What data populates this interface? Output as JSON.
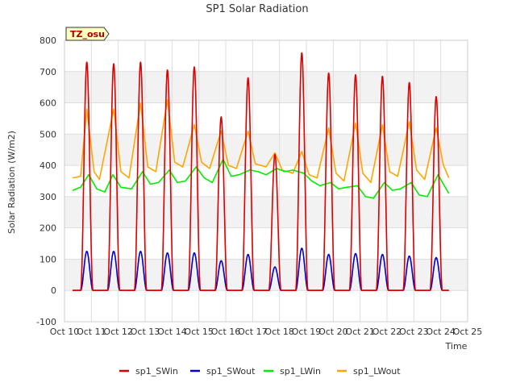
{
  "chart_data": {
    "type": "line",
    "title": "SP1 Solar Radiation",
    "xlabel": "Time",
    "ylabel": "Solar Radiation (W/m2)",
    "tag": "TZ_osu",
    "xlim": [
      10,
      25
    ],
    "ylim": [
      -100,
      800
    ],
    "x_ticks": [
      10,
      11,
      12,
      13,
      14,
      15,
      16,
      17,
      18,
      19,
      20,
      21,
      22,
      23,
      24,
      25
    ],
    "x_tick_labels": [
      "Oct 10",
      "Oct 11",
      "Oct 12",
      "Oct 13",
      "Oct 14",
      "Oct 15",
      "Oct 16",
      "Oct 17",
      "Oct 18",
      "Oct 19",
      "Oct 20",
      "Oct 21",
      "Oct 22",
      "Oct 23",
      "Oct 24",
      "Oct 25"
    ],
    "y_ticks": [
      -100,
      0,
      100,
      200,
      300,
      400,
      500,
      600,
      700,
      800
    ],
    "grid": true,
    "legend_position": "bottom",
    "series": [
      {
        "name": "sp1_SWin",
        "color": "#dd0000",
        "peaks": [
          {
            "day": 10.83,
            "value": 730
          },
          {
            "day": 11.83,
            "value": 725
          },
          {
            "day": 12.83,
            "value": 730
          },
          {
            "day": 13.83,
            "value": 705
          },
          {
            "day": 14.83,
            "value": 715
          },
          {
            "day": 15.83,
            "value": 555
          },
          {
            "day": 16.83,
            "value": 680
          },
          {
            "day": 17.83,
            "value": 435
          },
          {
            "day": 18.83,
            "value": 760
          },
          {
            "day": 19.83,
            "value": 695
          },
          {
            "day": 20.83,
            "value": 690
          },
          {
            "day": 21.83,
            "value": 685
          },
          {
            "day": 22.83,
            "value": 665
          },
          {
            "day": 23.83,
            "value": 620
          }
        ]
      },
      {
        "name": "sp1_SWout",
        "color": "#0000cc",
        "peaks": [
          {
            "day": 10.83,
            "value": 125
          },
          {
            "day": 11.83,
            "value": 125
          },
          {
            "day": 12.83,
            "value": 125
          },
          {
            "day": 13.83,
            "value": 120
          },
          {
            "day": 14.83,
            "value": 120
          },
          {
            "day": 15.83,
            "value": 95
          },
          {
            "day": 16.83,
            "value": 115
          },
          {
            "day": 17.83,
            "value": 75
          },
          {
            "day": 18.83,
            "value": 135
          },
          {
            "day": 19.83,
            "value": 115
          },
          {
            "day": 20.83,
            "value": 118
          },
          {
            "day": 21.83,
            "value": 115
          },
          {
            "day": 22.83,
            "value": 110
          },
          {
            "day": 23.83,
            "value": 105
          }
        ]
      },
      {
        "name": "sp1_LWin",
        "color": "#00ee00",
        "points": [
          [
            10.3,
            320
          ],
          [
            10.6,
            330
          ],
          [
            10.9,
            370
          ],
          [
            11.2,
            325
          ],
          [
            11.5,
            315
          ],
          [
            11.8,
            370
          ],
          [
            12.1,
            330
          ],
          [
            12.5,
            325
          ],
          [
            12.9,
            380
          ],
          [
            13.2,
            340
          ],
          [
            13.5,
            345
          ],
          [
            13.9,
            385
          ],
          [
            14.2,
            345
          ],
          [
            14.5,
            350
          ],
          [
            14.9,
            395
          ],
          [
            15.2,
            360
          ],
          [
            15.5,
            345
          ],
          [
            15.9,
            420
          ],
          [
            16.2,
            365
          ],
          [
            16.5,
            370
          ],
          [
            16.9,
            385
          ],
          [
            17.2,
            380
          ],
          [
            17.5,
            370
          ],
          [
            17.9,
            390
          ],
          [
            18.2,
            380
          ],
          [
            18.5,
            385
          ],
          [
            18.9,
            375
          ],
          [
            19.2,
            350
          ],
          [
            19.5,
            335
          ],
          [
            19.9,
            345
          ],
          [
            20.2,
            325
          ],
          [
            20.5,
            330
          ],
          [
            20.9,
            335
          ],
          [
            21.2,
            300
          ],
          [
            21.5,
            295
          ],
          [
            21.9,
            345
          ],
          [
            22.2,
            320
          ],
          [
            22.5,
            325
          ],
          [
            22.9,
            345
          ],
          [
            23.2,
            305
          ],
          [
            23.5,
            300
          ],
          [
            23.9,
            370
          ],
          [
            24.3,
            310
          ]
        ]
      },
      {
        "name": "sp1_LWout",
        "color": "#ffa500",
        "points": [
          [
            10.3,
            360
          ],
          [
            10.6,
            365
          ],
          [
            10.83,
            580
          ],
          [
            11.1,
            380
          ],
          [
            11.3,
            355
          ],
          [
            11.83,
            580
          ],
          [
            12.1,
            380
          ],
          [
            12.4,
            360
          ],
          [
            12.83,
            600
          ],
          [
            13.1,
            395
          ],
          [
            13.4,
            380
          ],
          [
            13.83,
            610
          ],
          [
            14.1,
            410
          ],
          [
            14.4,
            395
          ],
          [
            14.83,
            530
          ],
          [
            15.1,
            410
          ],
          [
            15.4,
            390
          ],
          [
            15.83,
            510
          ],
          [
            16.1,
            400
          ],
          [
            16.4,
            390
          ],
          [
            16.83,
            510
          ],
          [
            17.1,
            405
          ],
          [
            17.5,
            395
          ],
          [
            17.83,
            440
          ],
          [
            18.1,
            385
          ],
          [
            18.5,
            375
          ],
          [
            18.83,
            445
          ],
          [
            19.1,
            370
          ],
          [
            19.4,
            360
          ],
          [
            19.83,
            520
          ],
          [
            20.1,
            375
          ],
          [
            20.4,
            350
          ],
          [
            20.83,
            535
          ],
          [
            21.1,
            375
          ],
          [
            21.4,
            345
          ],
          [
            21.83,
            530
          ],
          [
            22.1,
            380
          ],
          [
            22.4,
            365
          ],
          [
            22.83,
            540
          ],
          [
            23.1,
            385
          ],
          [
            23.4,
            355
          ],
          [
            23.83,
            520
          ],
          [
            24.1,
            400
          ],
          [
            24.3,
            360
          ]
        ]
      }
    ]
  }
}
